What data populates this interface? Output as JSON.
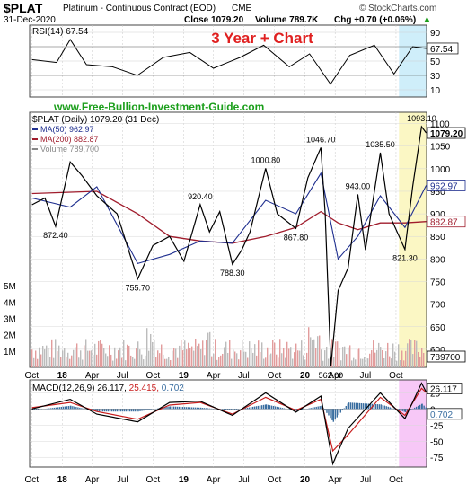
{
  "header": {
    "symbol": "$PLAT",
    "description": "Platinum - Continuous Contract (EOD)",
    "exchange": "CME",
    "date": "31-Dec-2020",
    "close_text": "Close 1079.20",
    "volume_text": "Volume 789.7K",
    "chg_text": "Chg +0.70 (+0.06%)",
    "chg_arrow": "▲",
    "credit": "© StockCharts.com"
  },
  "overlay": {
    "title": "3 Year + Chart",
    "title_color": "#e02020",
    "website": "www.Free-Bullion-Investment-Guide.com",
    "website_color": "#1a9e1a"
  },
  "colors": {
    "price": "#000000",
    "ma50": "#1f2f8f",
    "ma200": "#a01c2c",
    "volume": "#e29c9c",
    "volume_up": "#bcbcbc",
    "rsi": "#000000",
    "macd": "#000000",
    "macd_signal": "#c81e1e",
    "histogram": "#3a6ea0",
    "highlight_blue": "#cfeefa",
    "highlight_yellow": "#fbf7c4",
    "highlight_pink": "#f7c8f7"
  },
  "icons": {
    "arrow": "up-arrow-icon"
  },
  "chart_data": [
    {
      "type": "line",
      "panel": "rsi",
      "label": "RSI(14) 67.54",
      "last_value_tag": "67.54",
      "yticks": [
        "90",
        "70",
        "50",
        "30",
        "10"
      ],
      "ylim": [
        0,
        100
      ],
      "series": [
        {
          "name": "RSI(14)",
          "x": [
            "2017-10-02",
            "2017-12-15",
            "2018-01-25",
            "2018-03-15",
            "2018-06-01",
            "2018-08-15",
            "2018-11-01",
            "2019-01-20",
            "2019-04-01",
            "2019-06-20",
            "2019-08-30",
            "2019-11-15",
            "2020-01-15",
            "2020-03-18",
            "2020-05-15",
            "2020-07-28",
            "2020-09-25",
            "2020-11-20",
            "2020-12-31"
          ],
          "values": [
            52,
            48,
            80,
            45,
            42,
            30,
            55,
            62,
            40,
            55,
            72,
            42,
            60,
            18,
            58,
            72,
            32,
            70,
            67.54
          ]
        }
      ]
    },
    {
      "type": "line",
      "panel": "price",
      "label_symbol": "$PLAT (Daily) 1079.20 (31 Dec)",
      "legend": [
        {
          "text": "MA(50) 962.97",
          "series": "ma50"
        },
        {
          "text": "MA(200) 882.87",
          "series": "ma200"
        },
        {
          "text": "Volume 789,700",
          "series": "volume"
        }
      ],
      "yticks": [
        "1100",
        "1050",
        "1000",
        "950",
        "900",
        "850",
        "800",
        "750",
        "700",
        "650",
        "600"
      ],
      "ylim": [
        560,
        1125
      ],
      "volume_ticks": [
        "5M",
        "4M",
        "3M",
        "2M",
        "1M"
      ],
      "volume_ylim": [
        0,
        6000000
      ],
      "tags": [
        {
          "text": "1079.20",
          "value": 1079.2,
          "series": "price"
        },
        {
          "text": "962.97",
          "value": 962.97,
          "series": "ma50"
        },
        {
          "text": "882.87",
          "value": 882.87,
          "series": "ma200"
        },
        {
          "text": "789700",
          "value": 789700,
          "series": "volume"
        }
      ],
      "annotations": [
        {
          "text": "872.40",
          "x": "2017-12-12",
          "value": 872.4,
          "pos": "below"
        },
        {
          "text": "1046.70",
          "x": "2020-02-18",
          "value": 1046.7,
          "pos": "above"
        },
        {
          "text": "1035.50",
          "x": "2020-08-15",
          "value": 1035.5,
          "pos": "above"
        },
        {
          "text": "1000.80",
          "x": "2019-09-05",
          "value": 1000.8,
          "pos": "above"
        },
        {
          "text": "943.00",
          "x": "2020-06-08",
          "value": 943.0,
          "pos": "above"
        },
        {
          "text": "920.40",
          "x": "2019-02-20",
          "value": 920.4,
          "pos": "above"
        },
        {
          "text": "867.80",
          "x": "2019-12-05",
          "value": 867.8,
          "pos": "below"
        },
        {
          "text": "821.30",
          "x": "2020-10-28",
          "value": 821.3,
          "pos": "below"
        },
        {
          "text": "788.30",
          "x": "2019-05-28",
          "value": 788.3,
          "pos": "below"
        },
        {
          "text": "755.70",
          "x": "2018-08-16",
          "value": 755.7,
          "pos": "below"
        },
        {
          "text": "562.00",
          "x": "2020-03-19",
          "value": 562.0,
          "pos": "below"
        },
        {
          "text": "1093.10",
          "x": "2020-12-17",
          "value": 1093.1,
          "pos": "above"
        }
      ],
      "series": [
        {
          "name": "$PLAT",
          "x": [
            "2017-10-02",
            "2017-11-10",
            "2017-12-12",
            "2018-01-25",
            "2018-03-01",
            "2018-04-15",
            "2018-06-15",
            "2018-08-16",
            "2018-10-01",
            "2018-11-20",
            "2019-01-02",
            "2019-02-20",
            "2019-03-20",
            "2019-04-20",
            "2019-05-28",
            "2019-06-25",
            "2019-07-20",
            "2019-09-05",
            "2019-10-10",
            "2019-12-05",
            "2020-01-10",
            "2020-02-18",
            "2020-03-02",
            "2020-03-19",
            "2020-04-10",
            "2020-05-10",
            "2020-06-08",
            "2020-07-01",
            "2020-08-15",
            "2020-09-10",
            "2020-10-28",
            "2020-11-20",
            "2020-12-17",
            "2020-12-31"
          ],
          "values": [
            920,
            935,
            872.4,
            1015,
            985,
            940,
            900,
            755.7,
            830,
            850,
            795,
            920.4,
            860,
            905,
            788.3,
            820,
            860,
            1000.8,
            900,
            867.8,
            980,
            1046.7,
            900,
            562,
            730,
            780,
            943,
            820,
            1035.5,
            900,
            821.3,
            960,
            1093.1,
            1079.2
          ]
        },
        {
          "name": "MA(50)",
          "x": [
            "2017-10-02",
            "2018-01-25",
            "2018-04-15",
            "2018-08-16",
            "2018-11-20",
            "2019-02-20",
            "2019-05-28",
            "2019-09-05",
            "2019-12-05",
            "2020-02-18",
            "2020-04-10",
            "2020-06-08",
            "2020-08-15",
            "2020-10-28",
            "2020-12-31"
          ],
          "values": [
            935,
            915,
            960,
            790,
            810,
            840,
            835,
            930,
            900,
            990,
            800,
            850,
            940,
            870,
            962.97
          ]
        },
        {
          "name": "MA(200)",
          "x": [
            "2017-10-02",
            "2018-04-15",
            "2018-08-16",
            "2018-11-20",
            "2019-02-20",
            "2019-05-28",
            "2019-09-05",
            "2019-12-05",
            "2020-02-18",
            "2020-04-10",
            "2020-06-08",
            "2020-08-15",
            "2020-10-28",
            "2020-12-31"
          ],
          "values": [
            945,
            950,
            900,
            850,
            840,
            835,
            850,
            870,
            905,
            880,
            865,
            880,
            880,
            882.87
          ]
        }
      ]
    },
    {
      "type": "line",
      "panel": "macd",
      "label": "MACD(12,26,9) 26.117, 25.415, 0.702",
      "label_parts": {
        "macd": "MACD(12,26,9) 26.117,",
        "signal": " 25.415,",
        "hist": " 0.702"
      },
      "yticks": [
        "25",
        "0",
        "-25",
        "-50",
        "-75"
      ],
      "ylim": [
        -90,
        45
      ],
      "tags": [
        {
          "text": "26.117",
          "value": 26.117,
          "series": "macd"
        },
        {
          "text": "0.702",
          "value": 0.702,
          "series": "histogram"
        }
      ],
      "series": [
        {
          "name": "MACD",
          "x": [
            "2017-10-02",
            "2018-01-25",
            "2018-04-15",
            "2018-08-16",
            "2018-11-20",
            "2019-02-20",
            "2019-05-28",
            "2019-09-05",
            "2019-12-05",
            "2020-02-18",
            "2020-03-25",
            "2020-05-10",
            "2020-08-15",
            "2020-10-28",
            "2020-12-17",
            "2020-12-31"
          ],
          "values": [
            0,
            15,
            -8,
            -20,
            10,
            12,
            -10,
            25,
            -5,
            20,
            -85,
            -30,
            25,
            -15,
            40,
            26.117
          ]
        },
        {
          "name": "Signal",
          "x": [
            "2017-10-02",
            "2018-01-25",
            "2018-04-15",
            "2018-08-16",
            "2018-11-20",
            "2019-02-20",
            "2019-05-28",
            "2019-09-05",
            "2019-12-05",
            "2020-02-18",
            "2020-03-25",
            "2020-05-10",
            "2020-08-15",
            "2020-10-28",
            "2020-12-17",
            "2020-12-31"
          ],
          "values": [
            2,
            10,
            -4,
            -16,
            6,
            10,
            -8,
            18,
            -2,
            15,
            -65,
            -40,
            18,
            -10,
            32,
            25.415
          ]
        }
      ]
    }
  ],
  "x_axis": {
    "labels": [
      "Oct",
      "18",
      "Apr",
      "Jul",
      "Oct",
      "19",
      "Apr",
      "Jul",
      "Oct",
      "20",
      "Apr",
      "Jul",
      "Oct"
    ],
    "dates": [
      "2017-10-01",
      "2018-01-01",
      "2018-04-01",
      "2018-07-01",
      "2018-10-01",
      "2019-01-01",
      "2019-04-01",
      "2019-07-01",
      "2019-10-01",
      "2020-01-01",
      "2020-04-01",
      "2020-07-01",
      "2020-10-01"
    ],
    "range": [
      "2017-09-25",
      "2021-01-01"
    ],
    "highlight_start": "2020-10-10"
  }
}
